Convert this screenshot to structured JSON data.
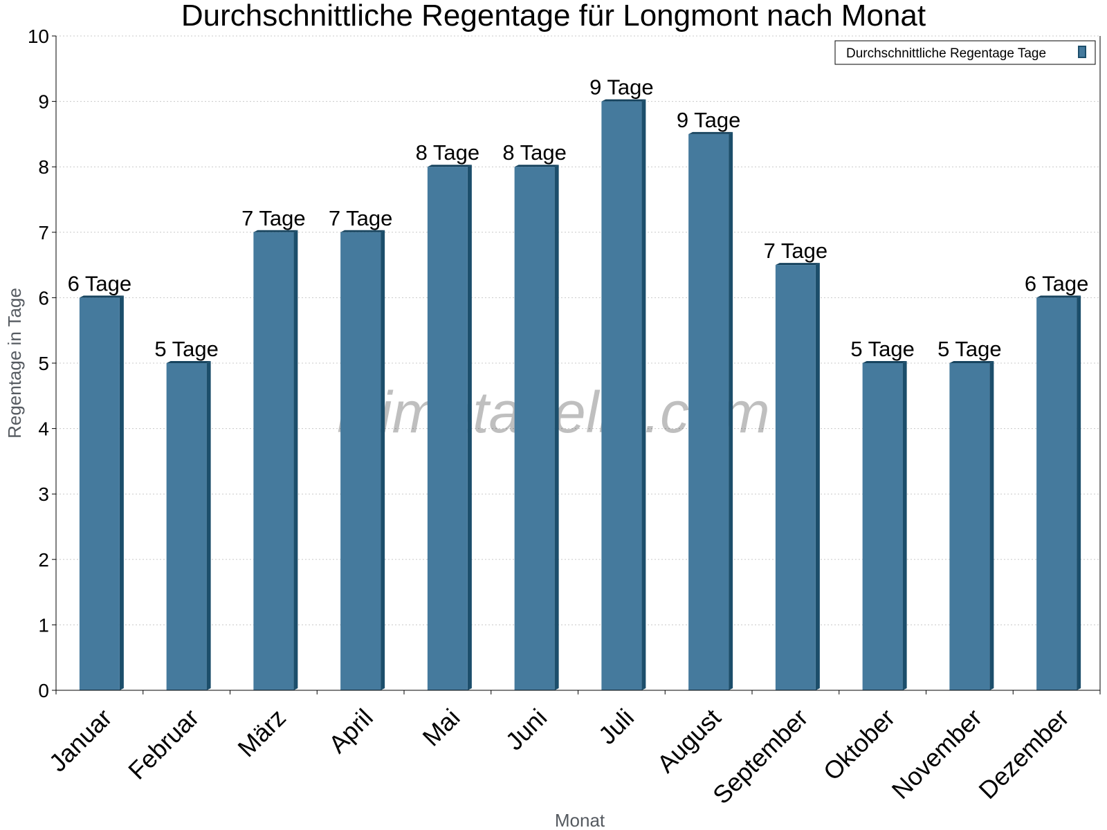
{
  "watermark": "klimatabelle.com",
  "chart_data": {
    "type": "bar",
    "title": "Durchschnittliche Regentage für Longmont nach Monat",
    "xlabel": "Monat",
    "ylabel": "Regentage in Tage",
    "ylim": [
      0,
      10
    ],
    "yticks": [
      "0",
      "1",
      "2",
      "3",
      "4",
      "5",
      "6",
      "7",
      "8",
      "9",
      "10"
    ],
    "grid": true,
    "legend_position": "top-right",
    "colors": {
      "bar": "#457a9d",
      "bar_side": "#1c4e6b",
      "bar_top": "#16435e"
    },
    "categories": [
      "Januar",
      "Februar",
      "März",
      "April",
      "Mai",
      "Juni",
      "Juli",
      "August",
      "September",
      "Oktober",
      "November",
      "Dezember"
    ],
    "series": [
      {
        "name": "Durchschnittliche Regentage Tage",
        "values": [
          6,
          5,
          7,
          7,
          8,
          8,
          9,
          8.5,
          6.5,
          5,
          5,
          6
        ],
        "labels": [
          "6 Tage",
          "5 Tage",
          "7 Tage",
          "7 Tage",
          "8 Tage",
          "8 Tage",
          "9 Tage",
          "9 Tage",
          "7 Tage",
          "5 Tage",
          "5 Tage",
          "6 Tage"
        ]
      }
    ]
  }
}
